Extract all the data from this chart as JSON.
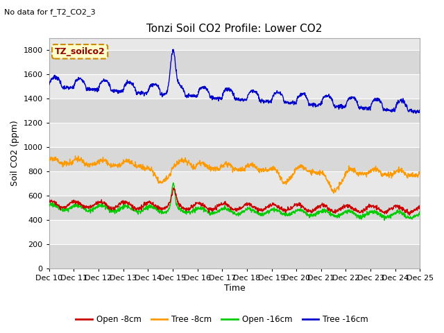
{
  "title": "Tonzi Soil CO2 Profile: Lower CO2",
  "top_left_text": "No data for f_T2_CO2_3",
  "ylabel": "Soil CO2 (ppm)",
  "xlabel": "Time",
  "legend_label": "TZ_soilco2",
  "ylim": [
    0,
    1900
  ],
  "yticks": [
    0,
    200,
    400,
    600,
    800,
    1000,
    1200,
    1400,
    1600,
    1800
  ],
  "xtick_labels": [
    "Dec 10",
    "Dec 11",
    "Dec 12",
    "Dec 13",
    "Dec 14",
    "Dec 15",
    "Dec 16",
    "Dec 17",
    "Dec 18",
    "Dec 19",
    "Dec 20",
    "Dec 21",
    "Dec 22",
    "Dec 23",
    "Dec 24",
    "Dec 25"
  ],
  "line_colors": {
    "open_8cm": "#cc0000",
    "tree_8cm": "#ff9900",
    "open_16cm": "#00cc00",
    "tree_16cm": "#0000cc"
  },
  "legend_entries": [
    "Open -8cm",
    "Tree -8cm",
    "Open -16cm",
    "Tree -16cm"
  ],
  "fig_width": 6.4,
  "fig_height": 4.8,
  "dpi": 100,
  "n_points": 1500
}
